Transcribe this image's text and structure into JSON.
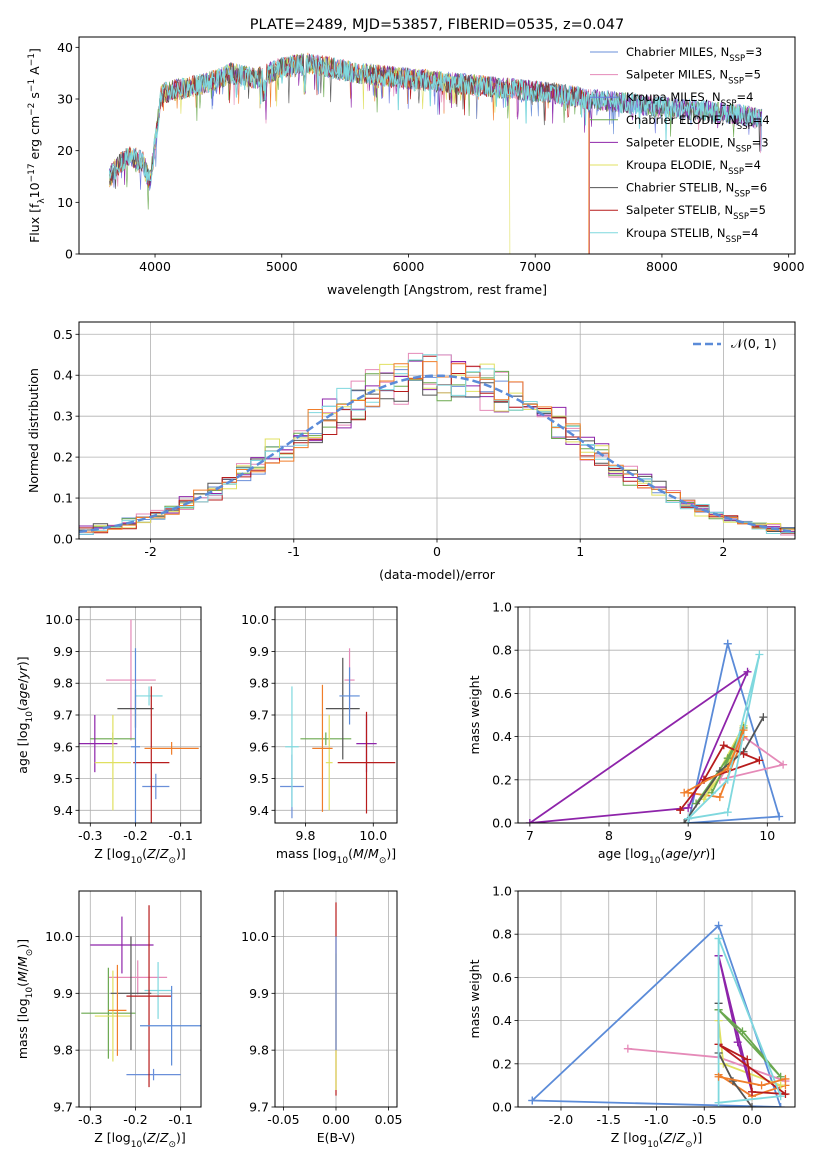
{
  "colors": [
    "#6a8fd9",
    "#e58ab8",
    "#6d78e0",
    "#6aa84f",
    "#8e24aa",
    "#e0e060",
    "#545454",
    "#b71c1c",
    "#7fd8de",
    "#f07d2a",
    "#5b8bd8"
  ],
  "chart_data": [
    {
      "id": "spectrum",
      "type": "line",
      "title": "PLATE=2489, MJD=53857, FIBERID=0535, z=0.047",
      "xlabel": "wavelength [Angstrom, rest frame]",
      "ylabel": "Flux [f_λ10^-17 erg cm^-2 s^-1 A^-1]",
      "xlim": [
        3400,
        9050
      ],
      "ylim": [
        0,
        42
      ],
      "xticks": [
        4000,
        5000,
        6000,
        7000,
        8000,
        9000
      ],
      "yticks": [
        0,
        10,
        20,
        30,
        40
      ],
      "grid": false,
      "legend_position": "top-right",
      "continuum": {
        "x": [
          3640,
          3700,
          3800,
          3900,
          3960,
          4050,
          4200,
          4400,
          4600,
          4800,
          5000,
          5200,
          5400,
          5600,
          5800,
          6000,
          6200,
          6400,
          6600,
          6800,
          7000,
          7200,
          7400,
          7600,
          7800,
          8000,
          8200,
          8400,
          8600,
          8800
        ],
        "y": [
          15,
          17,
          19,
          18,
          14,
          31,
          32,
          33,
          35,
          34,
          36,
          37,
          36,
          35,
          34.5,
          34,
          33.5,
          33,
          32.5,
          32,
          31.5,
          31,
          30,
          29.5,
          29,
          28.5,
          28,
          27.5,
          27,
          26
        ]
      },
      "series": [
        {
          "name": "Chabrier MILES",
          "subscript": "SSP",
          "n": 3
        },
        {
          "name": "Salpeter MILES",
          "subscript": "SSP",
          "n": 5
        },
        {
          "name": "Kroupa MILES",
          "subscript": "SSP",
          "n": 4
        },
        {
          "name": "Chabrier ELODIE",
          "subscript": "SSP",
          "n": 4
        },
        {
          "name": "Salpeter ELODIE",
          "subscript": "SSP",
          "n": 3
        },
        {
          "name": "Kroupa ELODIE",
          "subscript": "SSP",
          "n": 4
        },
        {
          "name": "Chabrier STELIB",
          "subscript": "SSP",
          "n": 6
        },
        {
          "name": "Salpeter STELIB",
          "subscript": "SSP",
          "n": 5
        },
        {
          "name": "Kroupa STELIB",
          "subscript": "SSP",
          "n": 4
        }
      ]
    },
    {
      "id": "residuals",
      "type": "histogram",
      "xlabel": "(data-model)/error",
      "ylabel": "Normed distribution",
      "xlim": [
        -2.5,
        2.5
      ],
      "ylim": [
        0,
        0.53
      ],
      "xticks": [
        -2,
        -1,
        0,
        1,
        2
      ],
      "yticks": [
        0.0,
        0.1,
        0.2,
        0.3,
        0.4,
        0.5
      ],
      "grid": true,
      "legend_position": "top-right",
      "legend_label": "𝒩(0, 1)",
      "bin_width": 0.1,
      "normal_curve": {
        "mean": 0,
        "sigma": 1
      }
    },
    {
      "id": "age_vs_Z",
      "type": "errorbar",
      "xlabel": "Z [log10(Z/Z⊙)]",
      "ylabel": "age  [log10(age/yr)]",
      "xlim": [
        -0.325,
        -0.055
      ],
      "ylim": [
        9.36,
        10.04
      ],
      "xticks": [
        -0.3,
        -0.2,
        -0.1
      ],
      "yticks": [
        9.4,
        9.5,
        9.6,
        9.7,
        9.8,
        9.9,
        10.0
      ],
      "grid": true,
      "points": [
        {
          "x": -0.155,
          "xerr": 0.03,
          "y": 9.475,
          "yerr": 0.04
        },
        {
          "x": -0.21,
          "xerr": 0.055,
          "y": 9.81,
          "yerr": 0.19
        },
        {
          "x": -0.17,
          "xerr": 0.03,
          "y": 9.76,
          "yerr": 0.03
        },
        {
          "x": -0.25,
          "xerr": 0.05,
          "y": 9.625,
          "yerr": 0.02
        },
        {
          "x": -0.29,
          "xerr": 0.05,
          "y": 9.61,
          "yerr": 0.09
        },
        {
          "x": -0.25,
          "xerr": 0.04,
          "y": 9.55,
          "yerr": 0.15
        },
        {
          "x": -0.2,
          "xerr": 0.04,
          "y": 9.72,
          "yerr": 0.06
        },
        {
          "x": -0.165,
          "xerr": 0.04,
          "y": 9.55,
          "yerr": 0.24
        },
        {
          "x": -0.2,
          "xerr": 0.01,
          "y": 9.6,
          "yerr": 0.31
        },
        {
          "x": -0.12,
          "xerr": 0.06,
          "y": 9.595,
          "yerr": 0.02
        }
      ]
    },
    {
      "id": "age_vs_mass",
      "type": "errorbar",
      "xlabel": "mass [log10(M/M⊙)]",
      "ylabel": "",
      "xlim": [
        9.71,
        10.07
      ],
      "ylim": [
        9.36,
        10.04
      ],
      "xticks": [
        9.8,
        10.0
      ],
      "yticks": [
        9.4,
        9.5,
        9.6,
        9.7,
        9.8,
        9.9,
        10.0
      ],
      "grid": true,
      "points": [
        {
          "x": 9.76,
          "xerr": 0.035,
          "y": 9.475,
          "yerr": 0.1
        },
        {
          "x": 9.93,
          "xerr": 0.015,
          "y": 9.81,
          "yerr": 0.1
        },
        {
          "x": 9.76,
          "xerr": 0.02,
          "y": 9.6,
          "yerr": 0.19
        },
        {
          "x": 9.86,
          "xerr": 0.075,
          "y": 9.625,
          "yerr": 0.02
        },
        {
          "x": 9.98,
          "xerr": 0.03,
          "y": 9.61,
          "yerr": 0.09
        },
        {
          "x": 9.87,
          "xerr": 0.01,
          "y": 9.55,
          "yerr": 0.15
        },
        {
          "x": 9.91,
          "xerr": 0.05,
          "y": 9.72,
          "yerr": 0.16
        },
        {
          "x": 9.98,
          "xerr": 0.085,
          "y": 9.55,
          "yerr": 0.16
        },
        {
          "x": 9.93,
          "xerr": 0.03,
          "y": 9.76,
          "yerr": 0.09
        },
        {
          "x": 9.85,
          "xerr": 0.03,
          "y": 9.595,
          "yerr": 0.2
        }
      ]
    },
    {
      "id": "massweight_vs_age",
      "type": "line",
      "xlabel": "age  [log10(age/yr)]",
      "ylabel": "mass weight",
      "xlim": [
        6.85,
        10.35
      ],
      "ylim": [
        0,
        1.0
      ],
      "xticks": [
        7,
        8,
        9,
        10
      ],
      "yticks": [
        0.0,
        0.2,
        0.4,
        0.6,
        0.8,
        1.0
      ],
      "grid": true,
      "series": [
        {
          "x": [
            9.5,
            10.15,
            9.0,
            9.5
          ],
          "y": [
            0.83,
            0.03,
            0.0,
            0.83
          ]
        },
        {
          "x": [
            9.7,
            10.2,
            9.4,
            9.7
          ],
          "y": [
            0.4,
            0.27,
            0.2,
            0.4
          ]
        },
        {
          "x": [
            9.0,
            9.4,
            9.7
          ],
          "y": [
            0.14,
            0.12,
            0.4
          ]
        },
        {
          "x": [
            9.2,
            9.5,
            9.7,
            9.2
          ],
          "y": [
            0.11,
            0.27,
            0.45,
            0.11
          ]
        },
        {
          "x": [
            7.0,
            9.75,
            9.0,
            7.0
          ],
          "y": [
            0.0,
            0.7,
            0.07,
            0.0
          ]
        },
        {
          "x": [
            9.1,
            9.5,
            9.7,
            9.3
          ],
          "y": [
            0.09,
            0.3,
            0.44,
            0.14
          ]
        },
        {
          "x": [
            8.95,
            9.4,
            9.7,
            9.95
          ],
          "y": [
            0.0,
            0.24,
            0.33,
            0.49
          ]
        },
        {
          "x": [
            8.9,
            9.2,
            9.45,
            9.7,
            9.9,
            9.2,
            8.9
          ],
          "y": [
            0.06,
            0.2,
            0.36,
            0.32,
            0.29,
            0.2,
            0.06
          ]
        },
        {
          "x": [
            9.0,
            9.5,
            9.9,
            9.5,
            9.0
          ],
          "y": [
            0.02,
            0.05,
            0.78,
            0.2,
            0.02
          ]
        },
        {
          "x": [
            8.95,
            9.5,
            9.7
          ],
          "y": [
            0.14,
            0.25,
            0.43
          ]
        }
      ]
    },
    {
      "id": "mass_vs_Z",
      "type": "errorbar",
      "xlabel": "Z [log10(Z/Z⊙)]",
      "ylabel": "mass [log10(M/M⊙)]",
      "xlim": [
        -0.325,
        -0.055
      ],
      "ylim": [
        9.7,
        10.08
      ],
      "xticks": [
        -0.3,
        -0.2,
        -0.1
      ],
      "yticks": [
        9.7,
        9.8,
        9.9,
        10.0
      ],
      "grid": true,
      "points": [
        {
          "x": -0.16,
          "xerr": 0.06,
          "y": 9.757,
          "yerr": 0.01
        },
        {
          "x": -0.195,
          "xerr": 0.065,
          "y": 9.928,
          "yerr": 0.03
        },
        {
          "x": -0.15,
          "xerr": 0.03,
          "y": 9.905,
          "yerr": 0.05
        },
        {
          "x": -0.26,
          "xerr": 0.06,
          "y": 9.865,
          "yerr": 0.08
        },
        {
          "x": -0.23,
          "xerr": 0.07,
          "y": 9.985,
          "yerr": 0.05
        },
        {
          "x": -0.25,
          "xerr": 0.04,
          "y": 9.86,
          "yerr": 0.08
        },
        {
          "x": -0.21,
          "xerr": 0.045,
          "y": 9.9,
          "yerr": 0.1
        },
        {
          "x": -0.17,
          "xerr": 0.05,
          "y": 9.895,
          "yerr": 0.16
        },
        {
          "x": -0.12,
          "xerr": 0.07,
          "y": 9.843,
          "yerr": 0.07
        },
        {
          "x": -0.24,
          "xerr": 0.02,
          "y": 9.87,
          "yerr": 0.08
        }
      ]
    },
    {
      "id": "mass_vs_EBV",
      "type": "errorbar",
      "xlabel": "E(B-V)",
      "ylabel": "",
      "xlim": [
        -0.058,
        0.058
      ],
      "ylim": [
        9.7,
        10.08
      ],
      "xticks": [
        -0.05,
        0.0,
        0.05
      ],
      "yticks": [
        9.7,
        9.8,
        9.9,
        10.0
      ],
      "grid": true,
      "points": [
        {
          "x": 0.0,
          "xerr": 0,
          "y": 9.89,
          "yerr": 0.17
        },
        {
          "x": 0.0,
          "xerr": 0,
          "y": 9.85,
          "yerr": 0.12
        },
        {
          "x": 0.0,
          "xerr": 0,
          "y": 9.9,
          "yerr": 0.1
        }
      ]
    },
    {
      "id": "massweight_vs_Z",
      "type": "line",
      "xlabel": "Z [log10(Z/Z⊙)]",
      "ylabel": "mass weight",
      "xlim": [
        -2.45,
        0.45
      ],
      "ylim": [
        0,
        1.0
      ],
      "xticks": [
        -2.0,
        -1.5,
        -1.0,
        -0.5,
        0.0
      ],
      "yticks": [
        0.0,
        0.2,
        0.4,
        0.6,
        0.8,
        1.0
      ],
      "grid": true,
      "series": [
        {
          "x": [
            -2.3,
            -0.35,
            0.3,
            -2.3
          ],
          "y": [
            0.03,
            0.84,
            0.0,
            0.03
          ]
        },
        {
          "x": [
            -1.3,
            -0.35,
            0.35
          ],
          "y": [
            0.27,
            0.23,
            0.12
          ]
        },
        {
          "x": [
            -0.35,
            0.0,
            0.35
          ],
          "y": [
            0.15,
            0.05,
            0.1
          ]
        },
        {
          "x": [
            -0.35,
            -0.3,
            0.3
          ],
          "y": [
            0.4,
            0.2,
            0.1
          ]
        },
        {
          "x": [
            -0.35,
            -0.15,
            0.0,
            -0.35
          ],
          "y": [
            0.7,
            0.3,
            0.07,
            0.7
          ]
        },
        {
          "x": [
            -0.35,
            -0.1,
            0.3,
            -0.35
          ],
          "y": [
            0.45,
            0.35,
            0.14,
            0.45
          ]
        },
        {
          "x": [
            -0.35,
            -0.35,
            -0.2,
            0.0
          ],
          "y": [
            0.48,
            0.25,
            0.12,
            0.0
          ]
        },
        {
          "x": [
            -0.35,
            -0.05,
            0.0,
            0.35,
            -0.35
          ],
          "y": [
            0.29,
            0.22,
            0.07,
            0.06,
            0.29
          ]
        },
        {
          "x": [
            -0.35,
            -0.35,
            0.3,
            -0.35
          ],
          "y": [
            0.78,
            0.02,
            0.05,
            0.78
          ]
        },
        {
          "x": [
            -0.35,
            0.1,
            0.35
          ],
          "y": [
            0.14,
            0.1,
            0.13
          ]
        }
      ]
    }
  ]
}
